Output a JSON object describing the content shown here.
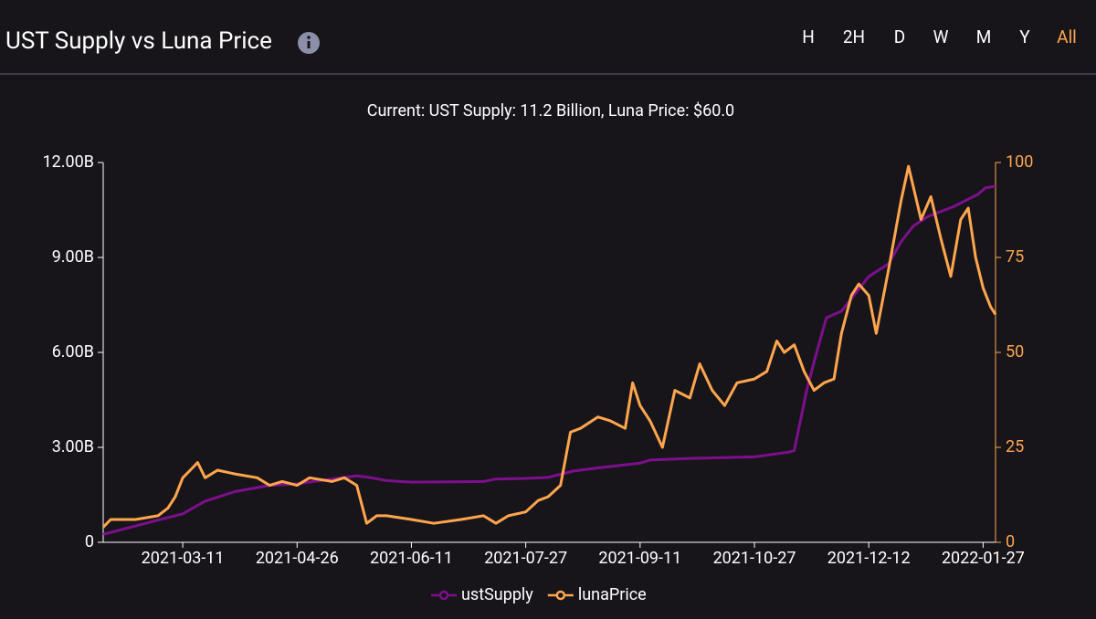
{
  "header": {
    "title": "UST Supply vs Luna Price",
    "timeframes": [
      "H",
      "2H",
      "D",
      "W",
      "M",
      "Y",
      "All"
    ],
    "selected_index": 6
  },
  "chart_data": {
    "type": "line",
    "title": "Current: UST Supply: 11.2 Billion, Luna Price: $60.0",
    "xlim": [
      "2021-02-07",
      "2022-02-01"
    ],
    "xticks": [
      "2021-03-11",
      "2021-04-26",
      "2021-06-11",
      "2021-07-27",
      "2021-09-11",
      "2021-10-27",
      "2021-12-12",
      "2022-01-27"
    ],
    "ylim": [
      0,
      12000000000
    ],
    "yticks": [
      {
        "value": 0,
        "label": "0"
      },
      {
        "value": 3000000000,
        "label": "3.00B"
      },
      {
        "value": 6000000000,
        "label": "6.00B"
      },
      {
        "value": 9000000000,
        "label": "9.00B"
      },
      {
        "value": 12000000000,
        "label": "12.00B"
      }
    ],
    "y2lim": [
      0,
      100
    ],
    "y2ticks": [
      0,
      25,
      50,
      75,
      100
    ],
    "legend": "bottom",
    "series": [
      {
        "name": "ustSupply",
        "color": "#7d0f8c",
        "axis": "y",
        "x": [
          "2021-02-07",
          "2021-03-01",
          "2021-03-11",
          "2021-03-20",
          "2021-04-01",
          "2021-04-15",
          "2021-04-26",
          "2021-05-10",
          "2021-05-20",
          "2021-05-25",
          "2021-06-01",
          "2021-06-11",
          "2021-07-10",
          "2021-07-15",
          "2021-07-27",
          "2021-08-05",
          "2021-08-15",
          "2021-08-25",
          "2021-09-11",
          "2021-09-15",
          "2021-10-01",
          "2021-10-27",
          "2021-11-10",
          "2021-11-12",
          "2021-11-17",
          "2021-11-21",
          "2021-11-25",
          "2021-12-01",
          "2021-12-12",
          "2021-12-20",
          "2021-12-25",
          "2021-12-30",
          "2022-01-05",
          "2022-01-15",
          "2022-01-25",
          "2022-01-28",
          "2022-02-01"
        ],
        "values": [
          250000000.0,
          700000000.0,
          900000000.0,
          1300000000.0,
          1600000000.0,
          1800000000.0,
          1850000000.0,
          2000000000.0,
          2100000000.0,
          2050000000.0,
          1950000000.0,
          1900000000.0,
          1920000000.0,
          2000000000.0,
          2020000000.0,
          2050000000.0,
          2250000000.0,
          2350000000.0,
          2500000000.0,
          2600000000.0,
          2650000000.0,
          2700000000.0,
          2850000000.0,
          2900000000.0,
          4800000000.0,
          6000000000.0,
          7100000000.0,
          7300000000.0,
          8400000000.0,
          8800000000.0,
          9500000000.0,
          10000000000.0,
          10300000000.0,
          10600000000.0,
          11000000000.0,
          11200000000.0,
          11250000000.0
        ]
      },
      {
        "name": "lunaPrice",
        "color": "#ffa64d",
        "axis": "y2",
        "x": [
          "2021-02-07",
          "2021-02-10",
          "2021-02-20",
          "2021-03-01",
          "2021-03-05",
          "2021-03-08",
          "2021-03-11",
          "2021-03-14",
          "2021-03-17",
          "2021-03-20",
          "2021-03-25",
          "2021-04-01",
          "2021-04-10",
          "2021-04-15",
          "2021-04-20",
          "2021-04-26",
          "2021-05-01",
          "2021-05-10",
          "2021-05-15",
          "2021-05-20",
          "2021-05-24",
          "2021-05-28",
          "2021-06-01",
          "2021-06-11",
          "2021-06-20",
          "2021-07-01",
          "2021-07-10",
          "2021-07-15",
          "2021-07-20",
          "2021-07-27",
          "2021-08-01",
          "2021-08-05",
          "2021-08-10",
          "2021-08-14",
          "2021-08-18",
          "2021-08-25",
          "2021-08-30",
          "2021-09-05",
          "2021-09-08",
          "2021-09-11",
          "2021-09-15",
          "2021-09-20",
          "2021-09-25",
          "2021-10-01",
          "2021-10-05",
          "2021-10-10",
          "2021-10-15",
          "2021-10-20",
          "2021-10-27",
          "2021-11-01",
          "2021-11-05",
          "2021-11-08",
          "2021-11-12",
          "2021-11-16",
          "2021-11-20",
          "2021-11-24",
          "2021-11-28",
          "2021-12-01",
          "2021-12-05",
          "2021-12-08",
          "2021-12-12",
          "2021-12-15",
          "2021-12-20",
          "2021-12-25",
          "2021-12-28",
          "2022-01-02",
          "2022-01-06",
          "2022-01-10",
          "2022-01-14",
          "2022-01-18",
          "2022-01-21",
          "2022-01-24",
          "2022-01-27",
          "2022-01-30",
          "2022-02-01"
        ],
        "values": [
          4,
          6,
          6,
          7,
          9,
          12,
          17,
          19,
          21,
          17,
          19,
          18,
          17,
          15,
          16,
          15,
          17,
          16,
          17,
          15,
          5,
          7,
          7,
          6,
          5,
          6,
          7,
          5,
          7,
          8,
          11,
          12,
          15,
          29,
          30,
          33,
          32,
          30,
          42,
          36,
          32,
          25,
          40,
          38,
          47,
          40,
          36,
          42,
          43,
          45,
          53,
          50,
          52,
          45,
          40,
          42,
          43,
          55,
          65,
          68,
          65,
          55,
          72,
          90,
          99,
          85,
          91,
          80,
          70,
          85,
          88,
          75,
          67,
          62,
          60
        ]
      }
    ]
  }
}
